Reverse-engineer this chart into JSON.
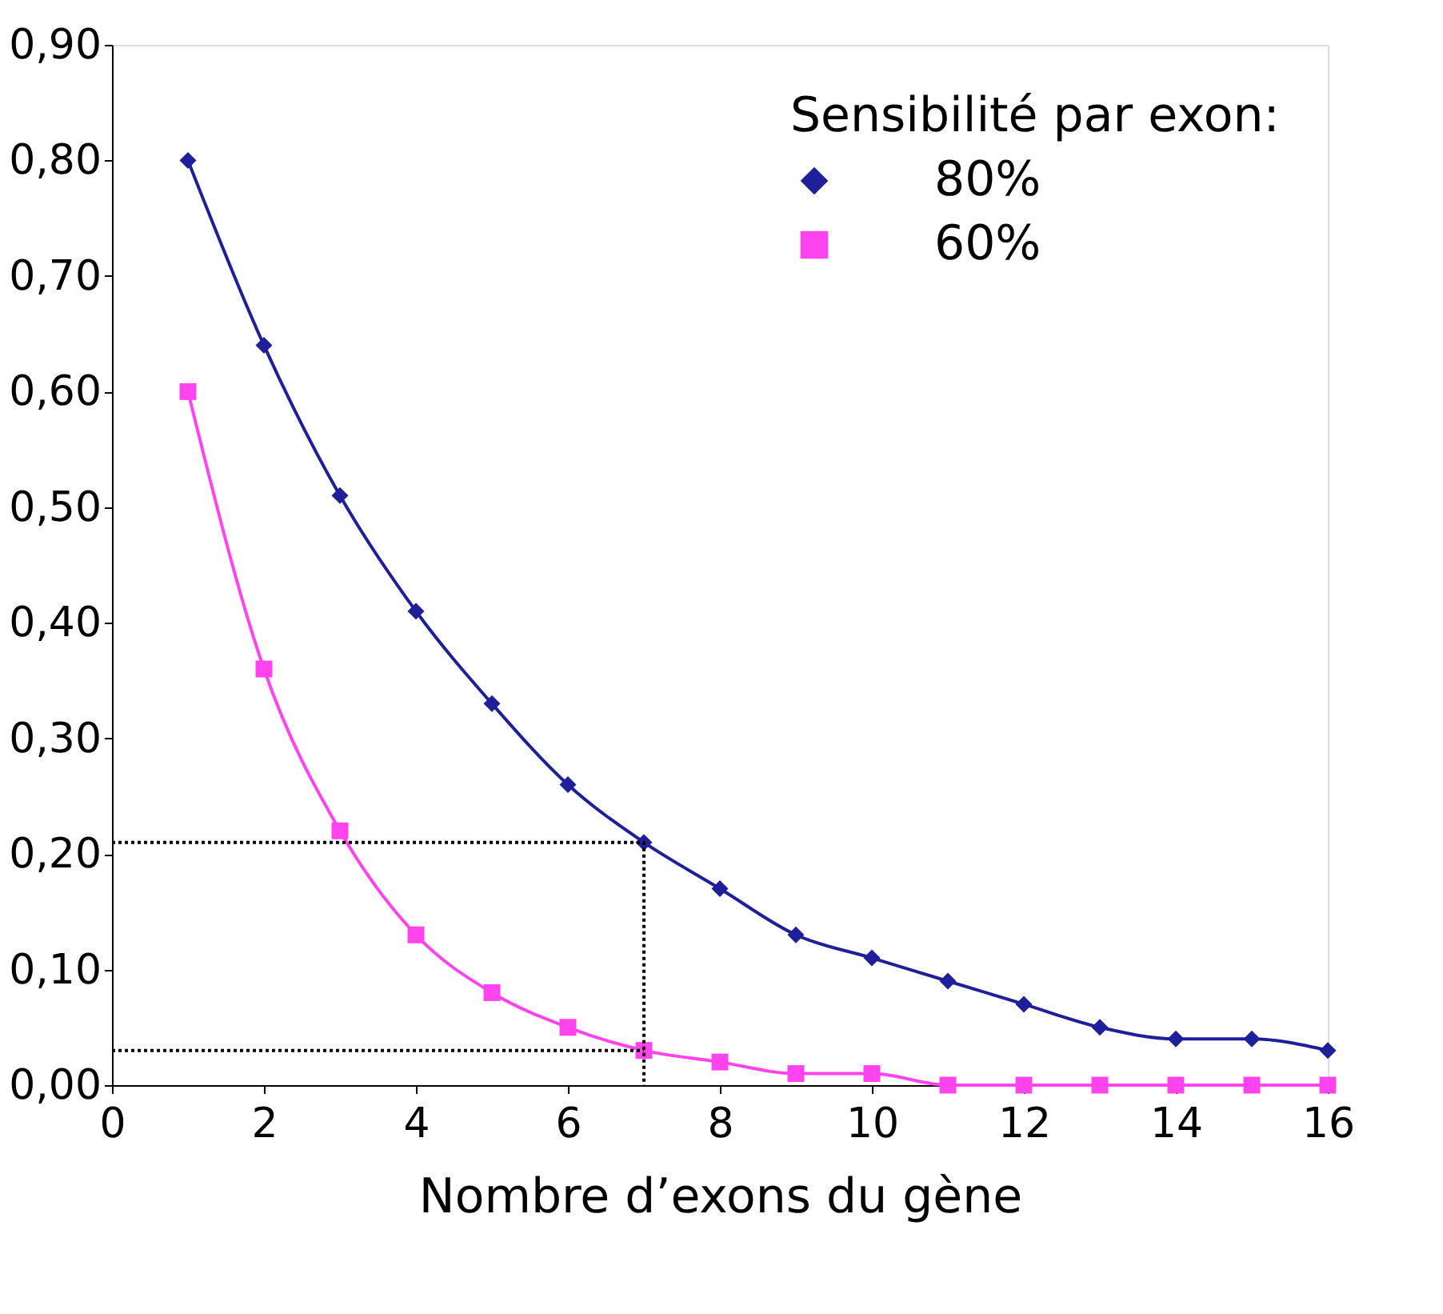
{
  "chart_data": {
    "type": "line",
    "xlabel": "Nombre d’exons du gène",
    "legend_title": "Sensibilité par exon:",
    "legend": "top right",
    "grid": false,
    "xlim": [
      0,
      16
    ],
    "xticks": [
      0,
      2,
      4,
      6,
      8,
      10,
      12,
      14,
      16
    ],
    "ylim": [
      0,
      0.9
    ],
    "yticks": [
      {
        "value": 0,
        "label": "0,00"
      },
      {
        "value": 0.1,
        "label": "0,10"
      },
      {
        "value": 0.2,
        "label": "0,20"
      },
      {
        "value": 0.3,
        "label": "0,30"
      },
      {
        "value": 0.4,
        "label": "0,40"
      },
      {
        "value": 0.5,
        "label": "0,50"
      },
      {
        "value": 0.6,
        "label": "0,60"
      },
      {
        "value": 0.7,
        "label": "0,70"
      },
      {
        "value": 0.8,
        "label": "0,80"
      },
      {
        "value": 0.9,
        "label": "0,90"
      }
    ],
    "series": [
      {
        "name": "80%",
        "color": "#1f1f99",
        "marker": "diamond",
        "line_style": "solid",
        "x": [
          1,
          2,
          3,
          4,
          5,
          6,
          7,
          8,
          9,
          10,
          11,
          12,
          13,
          14,
          15,
          16
        ],
        "values": [
          0.8,
          0.64,
          0.51,
          0.41,
          0.33,
          0.26,
          0.21,
          0.17,
          0.13,
          0.11,
          0.09,
          0.07,
          0.05,
          0.04,
          0.04,
          0.03
        ]
      },
      {
        "name": "60%",
        "color": "#ff44ee",
        "marker": "square",
        "line_style": "solid",
        "x": [
          1,
          2,
          3,
          4,
          5,
          6,
          7,
          8,
          9,
          10,
          11,
          12,
          13,
          14,
          15,
          16
        ],
        "values": [
          0.6,
          0.36,
          0.22,
          0.13,
          0.08,
          0.05,
          0.03,
          0.02,
          0.01,
          0.01,
          0.0,
          0.0,
          0.0,
          0.0,
          0.0,
          0.0
        ]
      },
      {
        "color": "#000000",
        "marker": "none",
        "line_style": "dotted",
        "x": [
          0,
          7,
          7
        ],
        "values": [
          0.21,
          0.21,
          0
        ]
      },
      {
        "color": "#000000",
        "marker": "none",
        "line_style": "dotted",
        "x": [
          0,
          7
        ],
        "values": [
          0.03,
          0.03
        ]
      }
    ]
  }
}
